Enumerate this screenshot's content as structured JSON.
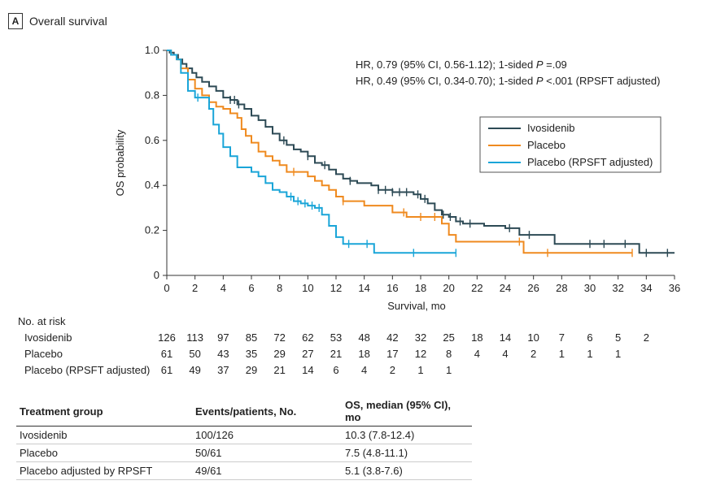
{
  "panel": {
    "letter": "A",
    "title": "Overall survival"
  },
  "chart_data": {
    "type": "line",
    "subtype": "kaplan-meier",
    "xlabel": "Survival, mo",
    "ylabel": "OS probability",
    "xlim": [
      0,
      36
    ],
    "ylim": [
      0,
      1.0
    ],
    "xticks": [
      0,
      2,
      4,
      6,
      8,
      10,
      12,
      14,
      16,
      18,
      20,
      22,
      24,
      26,
      28,
      30,
      32,
      34,
      36
    ],
    "yticks": [
      "0",
      "0.2",
      "0.4",
      "0.6",
      "0.8",
      "1.0"
    ],
    "annotations": [
      "HR, 0.79 (95% CI, 0.56-1.12); 1-sided P =.09",
      "HR, 0.49 (95% CI, 0.34-0.70); 1-sided P <.001 (RPSFT adjusted)"
    ],
    "legend_position": "right",
    "series": [
      {
        "name": "Ivosidenib",
        "color": "#2d4a55",
        "points": [
          [
            0,
            1.0
          ],
          [
            0.2,
            0.99
          ],
          [
            0.5,
            0.98
          ],
          [
            0.8,
            0.96
          ],
          [
            1.1,
            0.94
          ],
          [
            1.4,
            0.92
          ],
          [
            1.8,
            0.9
          ],
          [
            2.1,
            0.88
          ],
          [
            2.5,
            0.86
          ],
          [
            3.0,
            0.84
          ],
          [
            3.5,
            0.82
          ],
          [
            4.0,
            0.79
          ],
          [
            4.5,
            0.78
          ],
          [
            5.0,
            0.76
          ],
          [
            5.5,
            0.74
          ],
          [
            6.0,
            0.71
          ],
          [
            6.5,
            0.69
          ],
          [
            7.0,
            0.66
          ],
          [
            7.5,
            0.63
          ],
          [
            8.0,
            0.6
          ],
          [
            8.5,
            0.58
          ],
          [
            9.0,
            0.56
          ],
          [
            9.5,
            0.55
          ],
          [
            10.0,
            0.53
          ],
          [
            10.5,
            0.5
          ],
          [
            11.0,
            0.49
          ],
          [
            11.5,
            0.47
          ],
          [
            12.0,
            0.45
          ],
          [
            12.5,
            0.43
          ],
          [
            13.0,
            0.42
          ],
          [
            13.5,
            0.41
          ],
          [
            14.5,
            0.4
          ],
          [
            15.0,
            0.38
          ],
          [
            16.0,
            0.37
          ],
          [
            17.0,
            0.37
          ],
          [
            17.5,
            0.36
          ],
          [
            18.0,
            0.34
          ],
          [
            18.5,
            0.32
          ],
          [
            19.0,
            0.29
          ],
          [
            19.5,
            0.27
          ],
          [
            20.0,
            0.26
          ],
          [
            20.5,
            0.24
          ],
          [
            21.0,
            0.23
          ],
          [
            22.5,
            0.22
          ],
          [
            24.0,
            0.21
          ],
          [
            25.0,
            0.18
          ],
          [
            27.0,
            0.18
          ],
          [
            27.5,
            0.14
          ],
          [
            33.0,
            0.14
          ],
          [
            33.5,
            0.1
          ],
          [
            36.0,
            0.1
          ]
        ],
        "censor_x": [
          4.5,
          4.8,
          5.1,
          8.3,
          10.0,
          11.2,
          13.0,
          15.0,
          15.5,
          16.0,
          16.5,
          17.0,
          17.8,
          18.3,
          19.6,
          20.1,
          20.8,
          21.5,
          24.3,
          25.7,
          30.0,
          31.0,
          32.5,
          34.0,
          35.5
        ]
      },
      {
        "name": "Placebo",
        "color": "#ef8a1f",
        "points": [
          [
            0,
            1.0
          ],
          [
            0.3,
            0.98
          ],
          [
            0.7,
            0.96
          ],
          [
            1.0,
            0.92
          ],
          [
            1.5,
            0.87
          ],
          [
            2.0,
            0.83
          ],
          [
            2.5,
            0.8
          ],
          [
            3.0,
            0.77
          ],
          [
            3.5,
            0.75
          ],
          [
            4.0,
            0.74
          ],
          [
            4.5,
            0.72
          ],
          [
            5.0,
            0.7
          ],
          [
            5.3,
            0.65
          ],
          [
            5.6,
            0.62
          ],
          [
            6.0,
            0.59
          ],
          [
            6.5,
            0.55
          ],
          [
            7.0,
            0.53
          ],
          [
            7.5,
            0.51
          ],
          [
            8.0,
            0.49
          ],
          [
            8.5,
            0.46
          ],
          [
            10.0,
            0.44
          ],
          [
            10.5,
            0.42
          ],
          [
            11.0,
            0.4
          ],
          [
            11.5,
            0.38
          ],
          [
            12.0,
            0.35
          ],
          [
            12.5,
            0.33
          ],
          [
            14.0,
            0.31
          ],
          [
            16.0,
            0.28
          ],
          [
            17.0,
            0.26
          ],
          [
            19.5,
            0.23
          ],
          [
            20.0,
            0.18
          ],
          [
            20.5,
            0.15
          ],
          [
            25.0,
            0.15
          ],
          [
            25.3,
            0.1
          ],
          [
            33.0,
            0.1
          ]
        ],
        "censor_x": [
          1.5,
          9.0,
          12.5,
          16.8,
          18.0,
          19.0,
          25.0,
          27.0,
          33.0
        ]
      },
      {
        "name": "Placebo (RPSFT adjusted)",
        "color": "#1aa5d8",
        "points": [
          [
            0,
            1.0
          ],
          [
            0.3,
            0.98
          ],
          [
            0.7,
            0.96
          ],
          [
            1.0,
            0.9
          ],
          [
            1.5,
            0.82
          ],
          [
            2.0,
            0.79
          ],
          [
            2.5,
            0.79
          ],
          [
            3.0,
            0.74
          ],
          [
            3.3,
            0.67
          ],
          [
            3.7,
            0.63
          ],
          [
            4.0,
            0.57
          ],
          [
            4.5,
            0.53
          ],
          [
            5.0,
            0.48
          ],
          [
            6.0,
            0.46
          ],
          [
            6.5,
            0.44
          ],
          [
            7.0,
            0.41
          ],
          [
            7.5,
            0.38
          ],
          [
            8.0,
            0.37
          ],
          [
            8.5,
            0.35
          ],
          [
            9.0,
            0.33
          ],
          [
            9.5,
            0.32
          ],
          [
            10.0,
            0.31
          ],
          [
            10.5,
            0.3
          ],
          [
            11.0,
            0.27
          ],
          [
            11.5,
            0.22
          ],
          [
            12.0,
            0.17
          ],
          [
            12.5,
            0.14
          ],
          [
            14.5,
            0.14
          ],
          [
            14.7,
            0.1
          ],
          [
            20.5,
            0.1
          ]
        ],
        "censor_x": [
          2.2,
          8.8,
          9.3,
          9.8,
          10.3,
          10.8,
          12.9,
          14.2,
          17.5,
          20.5
        ]
      }
    ]
  },
  "at_risk": {
    "title": "No. at risk",
    "times": [
      0,
      2,
      4,
      6,
      8,
      10,
      12,
      14,
      16,
      18,
      20,
      22,
      24,
      26,
      28,
      30,
      32,
      34
    ],
    "rows": [
      {
        "label": "Ivosidenib",
        "values": [
          "126",
          "113",
          "97",
          "85",
          "72",
          "62",
          "53",
          "48",
          "42",
          "32",
          "25",
          "18",
          "14",
          "10",
          "7",
          "6",
          "5",
          "2"
        ]
      },
      {
        "label": "Placebo",
        "values": [
          "61",
          "50",
          "43",
          "35",
          "29",
          "27",
          "21",
          "18",
          "17",
          "12",
          "8",
          "4",
          "4",
          "2",
          "1",
          "1",
          "1"
        ]
      },
      {
        "label": "Placebo (RPSFT adjusted)",
        "values": [
          "61",
          "49",
          "37",
          "29",
          "21",
          "14",
          "6",
          "4",
          "2",
          "1",
          "1"
        ]
      }
    ]
  },
  "summary_table": {
    "headers": [
      "Treatment group",
      "Events/patients, No.",
      "OS, median (95% CI), mo"
    ],
    "rows": [
      [
        "Ivosidenib",
        "100/126",
        "10.3 (7.8-12.4)"
      ],
      [
        "Placebo",
        "50/61",
        "7.5 (4.8-11.1)"
      ],
      [
        "Placebo adjusted by RPSFT",
        "49/61",
        "5.1 (3.8-7.6)"
      ]
    ]
  }
}
